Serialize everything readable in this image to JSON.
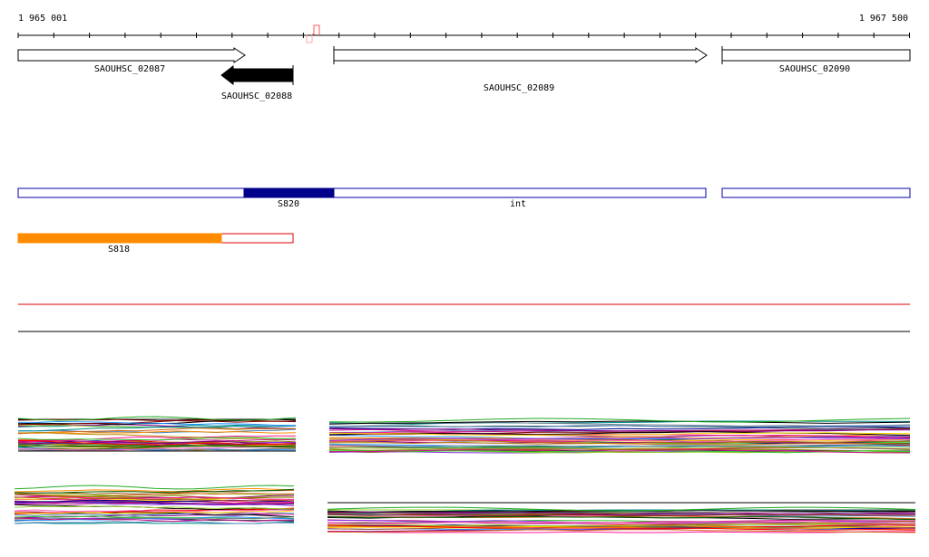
{
  "ruler": {
    "start_label": "1 965 001",
    "end_label": "1 967 500",
    "start_bp": 1965001,
    "end_bp": 1967500
  },
  "genes": [
    {
      "label": "SAOUHSC_02087",
      "strand": "+",
      "filled": false
    },
    {
      "label": "SAOUHSC_02088",
      "strand": "-",
      "filled": true
    },
    {
      "label": "SAOUHSC_02089",
      "strand": "+",
      "filled": false
    },
    {
      "label": "SAOUHSC_02090",
      "strand": "+",
      "filled": false
    }
  ],
  "segments": {
    "s820_label": "S820",
    "int_label": "int",
    "s818_label": "S818"
  },
  "colors": {
    "segment_outline": "#0000aa",
    "segment_fill": "#00008b",
    "s818_fill": "#ff8c00",
    "s818_outline": "#dd0000",
    "red_line": "#dd0000",
    "black_line": "#000000",
    "marker": "#ff6666"
  }
}
